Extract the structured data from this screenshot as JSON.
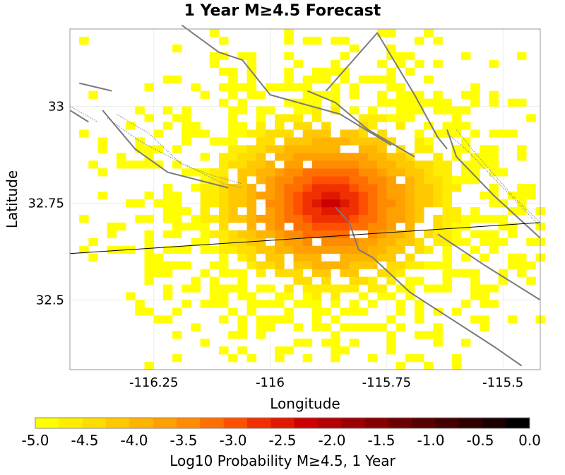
{
  "chart_data": {
    "type": "heatmap",
    "title": "1 Year M≥4.5 Forecast",
    "xlabel": "Longitude",
    "ylabel": "Latitude",
    "xlim": [
      -116.43,
      -115.42
    ],
    "ylim": [
      32.32,
      33.2
    ],
    "x_ticks": [
      {
        "value": -116.25,
        "label": "-116.25"
      },
      {
        "value": -116.0,
        "label": "-116"
      },
      {
        "value": -115.75,
        "label": "-115.75"
      },
      {
        "value": -115.5,
        "label": "-115.5"
      }
    ],
    "y_ticks": [
      {
        "value": 33.0,
        "label": "33"
      },
      {
        "value": 32.75,
        "label": "32.75"
      },
      {
        "value": 32.5,
        "label": "32.5"
      }
    ],
    "grid": true,
    "cell_size_deg": 0.02,
    "peak": {
      "lon": -115.87,
      "lat": 32.75,
      "log10_probability": -2.1
    },
    "colorbar": {
      "label": "Log10 Probability M≥4.5, 1 Year",
      "range": [
        -5.0,
        0.0
      ],
      "ticks": [
        "-5.0",
        "-4.5",
        "-4.0",
        "-3.5",
        "-3.0",
        "-2.5",
        "-2.0",
        "-1.5",
        "-1.0",
        "-0.5",
        "0.0"
      ],
      "colors": [
        "#ffff00",
        "#ffee00",
        "#ffdd00",
        "#ffc800",
        "#ffb400",
        "#ffa000",
        "#ff8c00",
        "#ff6e00",
        "#ff5000",
        "#f03000",
        "#e01800",
        "#cc0000",
        "#b40000",
        "#9c0000",
        "#840000",
        "#6c0000",
        "#560000",
        "#420000",
        "#2e0000",
        "#1a0000",
        "#000000"
      ]
    },
    "fault_traces": [
      [
        [
          -116.41,
          33.06
        ],
        [
          -116.34,
          33.04
        ]
      ],
      [
        [
          -116.43,
          32.99
        ],
        [
          -116.39,
          32.96
        ]
      ],
      [
        [
          -116.36,
          32.99
        ],
        [
          -116.29,
          32.89
        ],
        [
          -116.22,
          32.83
        ],
        [
          -116.09,
          32.79
        ]
      ],
      [
        [
          -116.19,
          33.21
        ],
        [
          -116.11,
          33.14
        ],
        [
          -116.06,
          33.12
        ],
        [
          -116.0,
          33.03
        ],
        [
          -115.85,
          32.98
        ],
        [
          -115.74,
          32.9
        ]
      ],
      [
        [
          -115.92,
          33.04
        ],
        [
          -115.86,
          33.01
        ],
        [
          -115.79,
          32.94
        ],
        [
          -115.69,
          32.87
        ]
      ],
      [
        [
          -115.88,
          33.04
        ],
        [
          -115.77,
          33.19
        ],
        [
          -115.69,
          33.03
        ],
        [
          -115.64,
          32.92
        ],
        [
          -115.62,
          32.89
        ]
      ],
      [
        [
          -115.86,
          32.74
        ],
        [
          -115.83,
          32.7
        ],
        [
          -115.81,
          32.63
        ],
        [
          -115.78,
          32.61
        ],
        [
          -115.7,
          32.52
        ],
        [
          -115.52,
          32.38
        ],
        [
          -115.46,
          32.33
        ]
      ],
      [
        [
          -115.62,
          32.94
        ],
        [
          -115.6,
          32.87
        ],
        [
          -115.52,
          32.77
        ],
        [
          -115.42,
          32.66
        ]
      ],
      [
        [
          -115.64,
          32.67
        ],
        [
          -115.54,
          32.59
        ],
        [
          -115.42,
          32.5
        ]
      ]
    ],
    "fault_zone_outlines": [
      [
        [
          -116.43,
          33.0
        ],
        [
          -116.37,
          32.96
        ]
      ],
      [
        [
          -116.33,
          32.98
        ],
        [
          -116.26,
          32.93
        ],
        [
          -116.19,
          32.85
        ],
        [
          -116.12,
          32.82
        ],
        [
          -116.06,
          32.8
        ]
      ],
      [
        [
          -116.35,
          32.97
        ],
        [
          -116.28,
          32.91
        ],
        [
          -116.2,
          32.86
        ],
        [
          -116.1,
          32.8
        ],
        [
          -116.06,
          32.79
        ]
      ],
      [
        [
          -115.62,
          32.93
        ],
        [
          -115.58,
          32.89
        ],
        [
          -115.5,
          32.79
        ],
        [
          -115.42,
          32.69
        ]
      ],
      [
        [
          -115.6,
          32.94
        ],
        [
          -115.56,
          32.88
        ],
        [
          -115.48,
          32.77
        ],
        [
          -115.42,
          32.7
        ]
      ],
      [
        [
          -115.42,
          32.32
        ],
        [
          -115.48,
          32.32
        ]
      ]
    ],
    "border_line": [
      [
        -116.43,
        32.62
      ],
      [
        -115.42,
        32.7
      ]
    ]
  }
}
